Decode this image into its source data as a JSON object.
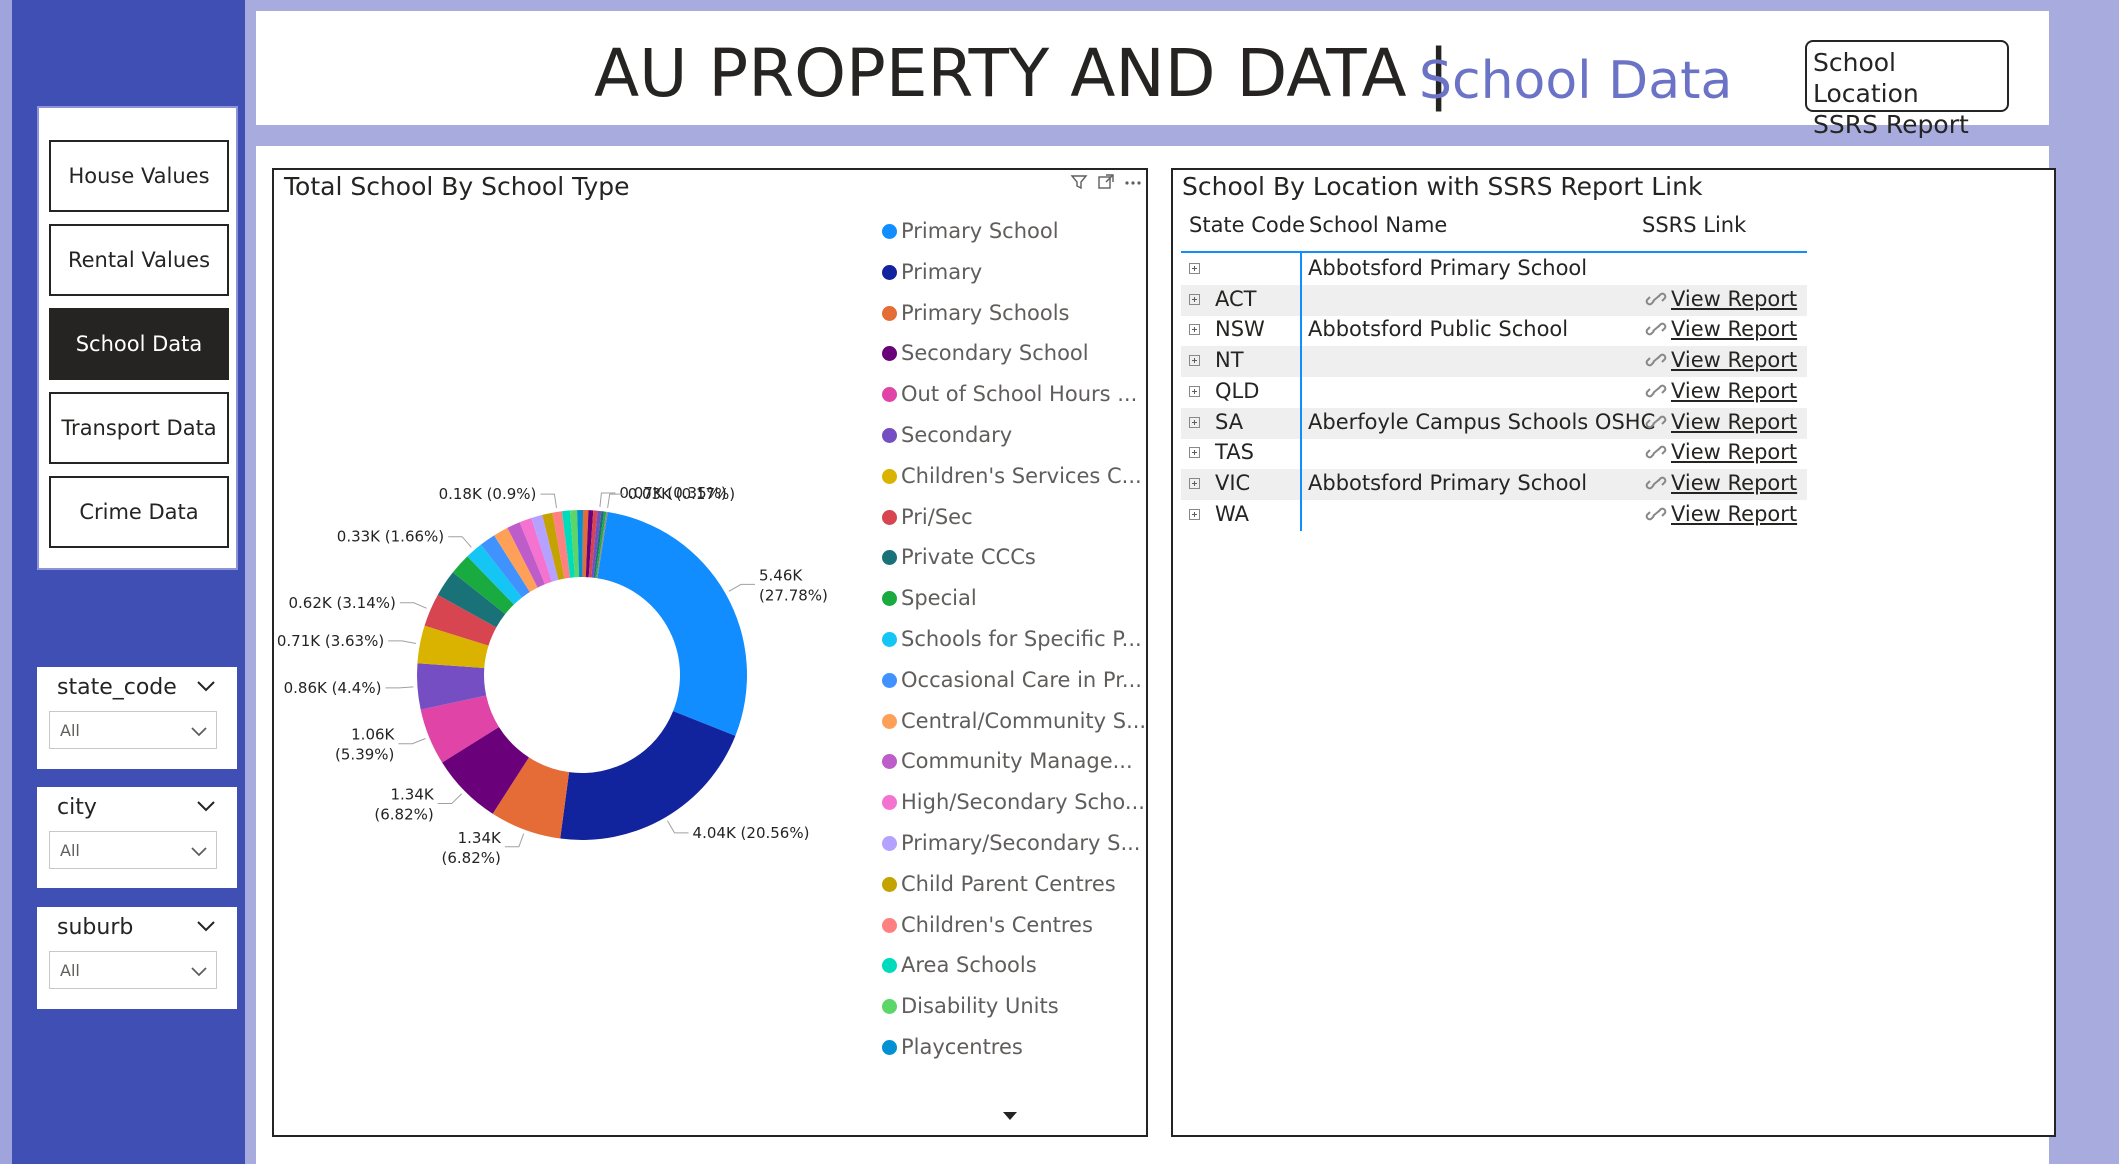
{
  "header": {
    "title": "AU PROPERTY AND DATA",
    "separator": "|",
    "subtitle": "School Data",
    "ssrs_button_line1": "School Location",
    "ssrs_button_line2": "SSRS Report"
  },
  "nav": {
    "items": [
      {
        "label": "House Values",
        "active": false
      },
      {
        "label": "Rental Values",
        "active": false
      },
      {
        "label": "School Data",
        "active": true
      },
      {
        "label": "Transport Data",
        "active": false
      },
      {
        "label": "Crime Data",
        "active": false
      }
    ]
  },
  "filters": [
    {
      "title": "state_code",
      "value": "All"
    },
    {
      "title": "city",
      "value": "All"
    },
    {
      "title": "suburb",
      "value": "All"
    }
  ],
  "pie_visual": {
    "title": "Total School By School Type",
    "icons": [
      "filter-icon",
      "focus-mode-icon",
      "more-options-icon"
    ],
    "legend_scroll_icon": "caret-down-icon"
  },
  "chart_data": {
    "type": "pie",
    "title": "Total School By School Type",
    "donut": true,
    "legend_position": "right",
    "legend": [
      {
        "label": "Primary School",
        "color": "#118DFF"
      },
      {
        "label": "Primary",
        "color": "#12239E"
      },
      {
        "label": "Primary Schools",
        "color": "#E66C37"
      },
      {
        "label": "Secondary School",
        "color": "#6B007B"
      },
      {
        "label": "Out of School Hours ...",
        "color": "#E044A7"
      },
      {
        "label": "Secondary",
        "color": "#744EC2"
      },
      {
        "label": "Children's Services C...",
        "color": "#D9B300"
      },
      {
        "label": "Pri/Sec",
        "color": "#D64550"
      },
      {
        "label": "Private CCCs",
        "color": "#197278"
      },
      {
        "label": "Special",
        "color": "#1AAB40"
      },
      {
        "label": "Schools for Specific P...",
        "color": "#15C6F4"
      },
      {
        "label": "Occasional Care in Pr...",
        "color": "#4092FF"
      },
      {
        "label": "Central/Community S...",
        "color": "#FFA058"
      },
      {
        "label": "Community Manage...",
        "color": "#BE5DC9"
      },
      {
        "label": "High/Secondary Scho...",
        "color": "#F472D0"
      },
      {
        "label": "Primary/Secondary S...",
        "color": "#B5A1FF"
      },
      {
        "label": "Child Parent Centres",
        "color": "#C4A200"
      },
      {
        "label": "Children's Centres",
        "color": "#FF8080"
      },
      {
        "label": "Area Schools",
        "color": "#00DBBC"
      },
      {
        "label": "Disability Units",
        "color": "#5BD667"
      },
      {
        "label": "Playcentres",
        "color": "#0091D5"
      }
    ],
    "slices": [
      {
        "value": 5.46,
        "percent": 27.78,
        "color": "#118DFF",
        "label1": "5.46K",
        "label2": "(27.78%)"
      },
      {
        "value": 4.04,
        "percent": 20.56,
        "color": "#12239E",
        "label1": "4.04K (20.56%)",
        "label2": ""
      },
      {
        "value": 1.34,
        "percent": 6.82,
        "color": "#E66C37",
        "label1": "1.34K",
        "label2": "(6.82%)"
      },
      {
        "value": 1.34,
        "percent": 6.82,
        "color": "#6B007B",
        "label1": "1.34K",
        "label2": "(6.82%)"
      },
      {
        "value": 1.06,
        "percent": 5.39,
        "color": "#E044A7",
        "label1": "1.06K",
        "label2": "(5.39%)"
      },
      {
        "value": 0.86,
        "percent": 4.4,
        "color": "#744EC2",
        "label1": "0.86K (4.4%)",
        "label2": ""
      },
      {
        "value": 0.71,
        "percent": 3.63,
        "color": "#D9B300",
        "label1": "0.71K (3.63%)",
        "label2": ""
      },
      {
        "value": 0.62,
        "percent": 3.14,
        "color": "#D64550",
        "label1": "0.62K (3.14%)",
        "label2": ""
      },
      {
        "value": 0.5,
        "percent": 2.55,
        "color": "#197278",
        "label1": "",
        "label2": ""
      },
      {
        "value": 0.4,
        "percent": 2.05,
        "color": "#1AAB40",
        "label1": "",
        "label2": ""
      },
      {
        "value": 0.33,
        "percent": 1.66,
        "color": "#15C6F4",
        "label1": "0.33K (1.66%)",
        "label2": ""
      },
      {
        "value": 0.3,
        "percent": 1.5,
        "color": "#4092FF",
        "label1": "",
        "label2": ""
      },
      {
        "value": 0.28,
        "percent": 1.4,
        "color": "#FFA058",
        "label1": "",
        "label2": ""
      },
      {
        "value": 0.25,
        "percent": 1.25,
        "color": "#BE5DC9",
        "label1": "",
        "label2": ""
      },
      {
        "value": 0.23,
        "percent": 1.15,
        "color": "#F472D0",
        "label1": "",
        "label2": ""
      },
      {
        "value": 0.21,
        "percent": 1.05,
        "color": "#B5A1FF",
        "label1": "",
        "label2": ""
      },
      {
        "value": 0.19,
        "percent": 0.95,
        "color": "#C4A200",
        "label1": "",
        "label2": ""
      },
      {
        "value": 0.18,
        "percent": 0.9,
        "color": "#FF8080",
        "label1": "0.18K (0.9%)",
        "label2": ""
      },
      {
        "value": 0.15,
        "percent": 0.75,
        "color": "#00DBBC",
        "label1": "",
        "label2": ""
      },
      {
        "value": 0.13,
        "percent": 0.65,
        "color": "#5BD667",
        "label1": "",
        "label2": ""
      },
      {
        "value": 0.11,
        "percent": 0.55,
        "color": "#0091D5",
        "label1": "",
        "label2": ""
      },
      {
        "value": 0.1,
        "percent": 0.5,
        "color": "#E66C37",
        "label1": "",
        "label2": ""
      },
      {
        "value": 0.09,
        "percent": 0.45,
        "color": "#6B007B",
        "label1": "",
        "label2": ""
      },
      {
        "value": 0.08,
        "percent": 0.4,
        "color": "#D64550",
        "label1": "",
        "label2": ""
      },
      {
        "value": 0.07,
        "percent": 0.35,
        "color": "#744EC2",
        "label1": "0.07K (0.35%)",
        "label2": ""
      },
      {
        "value": 0.05,
        "percent": 0.25,
        "color": "#197278",
        "label1": "",
        "label2": ""
      },
      {
        "value": 0.04,
        "percent": 0.2,
        "color": "#1AAB40",
        "label1": "",
        "label2": ""
      },
      {
        "value": 0.03,
        "percent": 0.17,
        "color": "#8E8E8E",
        "label1": "0.03K (0.17%)",
        "label2": ""
      }
    ]
  },
  "table_visual": {
    "title": "School By Location with SSRS Report Link",
    "columns": [
      "State Code",
      "School Name",
      "SSRS Link"
    ],
    "rows": [
      {
        "state": "",
        "name": "Abbotsford Primary School",
        "link": ""
      },
      {
        "state": "ACT",
        "name": "",
        "link": "View Report"
      },
      {
        "state": "NSW",
        "name": "Abbotsford Public School",
        "link": "View Report"
      },
      {
        "state": "NT",
        "name": "",
        "link": "View Report"
      },
      {
        "state": "QLD",
        "name": "",
        "link": "View Report"
      },
      {
        "state": "SA",
        "name": "Aberfoyle Campus Schools OSHC",
        "link": "View Report"
      },
      {
        "state": "TAS",
        "name": "",
        "link": "View Report"
      },
      {
        "state": "VIC",
        "name": "Abbotsford Primary School",
        "link": "View Report"
      },
      {
        "state": "WA",
        "name": "",
        "link": "View Report"
      }
    ]
  }
}
